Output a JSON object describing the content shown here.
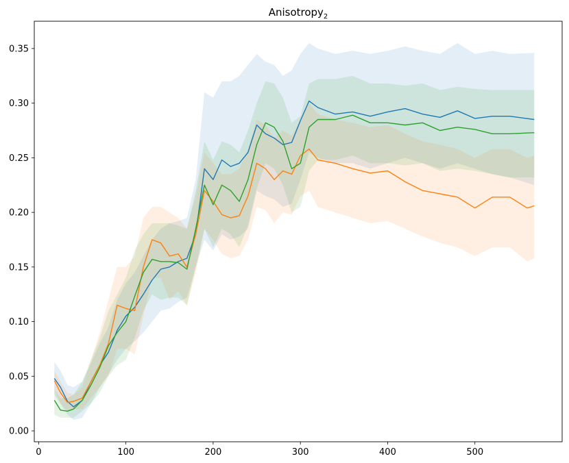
{
  "chart_data": {
    "type": "line",
    "title": "Anisotropy",
    "title_subscript": "2",
    "xlabel": "",
    "ylabel": "",
    "xlim": [
      -5,
      600
    ],
    "ylim": [
      -0.01,
      0.375
    ],
    "xticks": [
      0,
      100,
      200,
      300,
      400,
      500
    ],
    "xtick_labels": [
      "0",
      "100",
      "200",
      "300",
      "400",
      "500"
    ],
    "yticks": [
      0.0,
      0.05,
      0.1,
      0.15,
      0.2,
      0.25,
      0.3,
      0.35
    ],
    "ytick_labels": [
      "0.00",
      "0.05",
      "0.10",
      "0.15",
      "0.20",
      "0.25",
      "0.30",
      "0.35"
    ],
    "grid": false,
    "series": [
      {
        "name": "blue",
        "color": "#1f77b4",
        "x": [
          18,
          25,
          33,
          40,
          50,
          60,
          70,
          80,
          90,
          100,
          110,
          120,
          130,
          140,
          150,
          160,
          170,
          180,
          190,
          200,
          210,
          220,
          230,
          240,
          250,
          260,
          270,
          280,
          290,
          300,
          310,
          320,
          340,
          360,
          380,
          400,
          420,
          440,
          460,
          480,
          500,
          520,
          540,
          568
        ],
        "y": [
          0.048,
          0.04,
          0.027,
          0.022,
          0.028,
          0.045,
          0.06,
          0.072,
          0.092,
          0.105,
          0.113,
          0.125,
          0.138,
          0.148,
          0.15,
          0.155,
          0.158,
          0.18,
          0.24,
          0.23,
          0.248,
          0.242,
          0.245,
          0.255,
          0.28,
          0.272,
          0.268,
          0.262,
          0.264,
          0.284,
          0.302,
          0.296,
          0.29,
          0.292,
          0.288,
          0.292,
          0.295,
          0.29,
          0.287,
          0.293,
          0.286,
          0.288,
          0.288,
          0.285
        ],
        "band_upper": [
          0.063,
          0.055,
          0.042,
          0.04,
          0.045,
          0.062,
          0.08,
          0.095,
          0.12,
          0.135,
          0.145,
          0.16,
          0.175,
          0.185,
          0.19,
          0.192,
          0.195,
          0.23,
          0.31,
          0.305,
          0.32,
          0.32,
          0.325,
          0.335,
          0.345,
          0.338,
          0.335,
          0.325,
          0.33,
          0.345,
          0.355,
          0.35,
          0.345,
          0.348,
          0.345,
          0.348,
          0.352,
          0.348,
          0.345,
          0.355,
          0.345,
          0.348,
          0.345,
          0.346
        ],
        "band_lower": [
          0.033,
          0.025,
          0.015,
          0.01,
          0.012,
          0.025,
          0.04,
          0.052,
          0.065,
          0.075,
          0.082,
          0.09,
          0.1,
          0.11,
          0.112,
          0.118,
          0.122,
          0.15,
          0.175,
          0.165,
          0.18,
          0.175,
          0.178,
          0.185,
          0.22,
          0.215,
          0.212,
          0.205,
          0.208,
          0.23,
          0.255,
          0.25,
          0.245,
          0.245,
          0.24,
          0.245,
          0.25,
          0.245,
          0.24,
          0.245,
          0.24,
          0.235,
          0.232,
          0.225
        ]
      },
      {
        "name": "orange",
        "color": "#ff7f0e",
        "x": [
          18,
          25,
          33,
          40,
          50,
          60,
          70,
          80,
          90,
          100,
          110,
          120,
          130,
          140,
          150,
          160,
          170,
          180,
          190,
          200,
          210,
          220,
          230,
          240,
          250,
          260,
          270,
          280,
          290,
          300,
          310,
          320,
          340,
          360,
          380,
          400,
          420,
          440,
          460,
          480,
          500,
          520,
          540,
          560,
          568
        ],
        "y": [
          0.046,
          0.035,
          0.026,
          0.027,
          0.03,
          0.045,
          0.06,
          0.08,
          0.115,
          0.112,
          0.11,
          0.15,
          0.175,
          0.172,
          0.16,
          0.162,
          0.15,
          0.18,
          0.22,
          0.21,
          0.198,
          0.195,
          0.197,
          0.215,
          0.245,
          0.24,
          0.23,
          0.238,
          0.235,
          0.252,
          0.258,
          0.248,
          0.245,
          0.24,
          0.236,
          0.238,
          0.228,
          0.22,
          0.217,
          0.214,
          0.204,
          0.214,
          0.214,
          0.204,
          0.206
        ],
        "band_upper": [
          0.055,
          0.045,
          0.035,
          0.033,
          0.04,
          0.065,
          0.09,
          0.12,
          0.15,
          0.15,
          0.16,
          0.195,
          0.205,
          0.205,
          0.2,
          0.195,
          0.185,
          0.215,
          0.255,
          0.245,
          0.235,
          0.235,
          0.24,
          0.258,
          0.285,
          0.28,
          0.268,
          0.275,
          0.27,
          0.285,
          0.3,
          0.29,
          0.285,
          0.282,
          0.278,
          0.28,
          0.272,
          0.265,
          0.262,
          0.258,
          0.25,
          0.258,
          0.258,
          0.25,
          0.252
        ],
        "band_lower": [
          0.038,
          0.025,
          0.018,
          0.02,
          0.02,
          0.03,
          0.04,
          0.05,
          0.075,
          0.075,
          0.07,
          0.105,
          0.14,
          0.14,
          0.12,
          0.128,
          0.115,
          0.145,
          0.185,
          0.175,
          0.162,
          0.158,
          0.16,
          0.175,
          0.205,
          0.202,
          0.19,
          0.2,
          0.198,
          0.215,
          0.22,
          0.205,
          0.2,
          0.195,
          0.19,
          0.192,
          0.185,
          0.178,
          0.172,
          0.168,
          0.16,
          0.168,
          0.168,
          0.155,
          0.158
        ]
      },
      {
        "name": "green",
        "color": "#2ca02c",
        "x": [
          18,
          25,
          33,
          40,
          50,
          60,
          70,
          80,
          90,
          100,
          110,
          120,
          130,
          140,
          150,
          160,
          170,
          180,
          190,
          200,
          210,
          220,
          230,
          240,
          250,
          260,
          270,
          280,
          290,
          300,
          310,
          320,
          340,
          360,
          380,
          400,
          420,
          440,
          460,
          480,
          500,
          520,
          540,
          568
        ],
        "y": [
          0.028,
          0.019,
          0.018,
          0.02,
          0.028,
          0.042,
          0.058,
          0.078,
          0.09,
          0.1,
          0.123,
          0.145,
          0.157,
          0.155,
          0.155,
          0.154,
          0.148,
          0.185,
          0.225,
          0.207,
          0.225,
          0.22,
          0.21,
          0.23,
          0.262,
          0.282,
          0.278,
          0.265,
          0.24,
          0.245,
          0.278,
          0.285,
          0.285,
          0.289,
          0.282,
          0.282,
          0.28,
          0.282,
          0.275,
          0.278,
          0.276,
          0.272,
          0.272,
          0.273
        ],
        "band_upper": [
          0.038,
          0.03,
          0.03,
          0.033,
          0.045,
          0.065,
          0.085,
          0.11,
          0.125,
          0.14,
          0.165,
          0.18,
          0.19,
          0.19,
          0.19,
          0.188,
          0.185,
          0.22,
          0.265,
          0.248,
          0.265,
          0.262,
          0.255,
          0.275,
          0.3,
          0.32,
          0.318,
          0.305,
          0.282,
          0.288,
          0.318,
          0.322,
          0.322,
          0.325,
          0.318,
          0.318,
          0.316,
          0.318,
          0.312,
          0.315,
          0.313,
          0.312,
          0.312,
          0.312
        ],
        "band_lower": [
          0.015,
          0.012,
          0.012,
          0.012,
          0.018,
          0.025,
          0.035,
          0.05,
          0.06,
          0.065,
          0.085,
          0.11,
          0.125,
          0.12,
          0.122,
          0.122,
          0.115,
          0.15,
          0.185,
          0.168,
          0.185,
          0.18,
          0.168,
          0.188,
          0.222,
          0.245,
          0.24,
          0.225,
          0.2,
          0.205,
          0.238,
          0.248,
          0.248,
          0.252,
          0.245,
          0.245,
          0.243,
          0.245,
          0.238,
          0.24,
          0.238,
          0.235,
          0.232,
          0.232
        ]
      }
    ]
  }
}
